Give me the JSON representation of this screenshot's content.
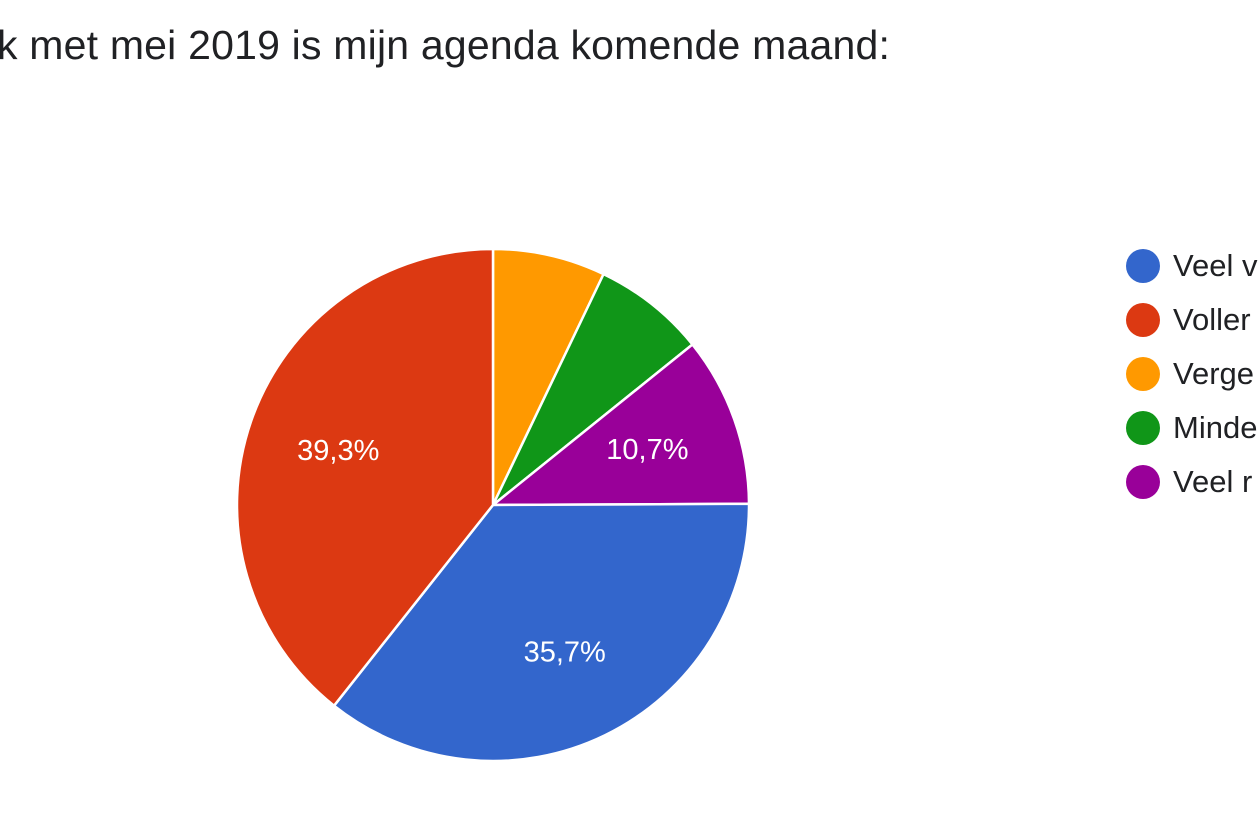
{
  "chart_data": {
    "type": "pie",
    "title": "k met mei 2019 is mijn agenda komende maand:",
    "slices": [
      {
        "label": "Veel v",
        "value": 35.7,
        "value_label": "35,7%",
        "color": "#3366cc"
      },
      {
        "label": "Voller",
        "value": 39.3,
        "value_label": "39,3%",
        "color": "#dc3912"
      },
      {
        "label": "Verge",
        "value": 7.1,
        "value_label": "",
        "color": "#ff9900"
      },
      {
        "label": "Minde",
        "value": 7.1,
        "value_label": "",
        "color": "#109618"
      },
      {
        "label": "Veel r",
        "value": 10.7,
        "value_label": "10,7%",
        "color": "#990099"
      }
    ],
    "legend_position": "right"
  }
}
